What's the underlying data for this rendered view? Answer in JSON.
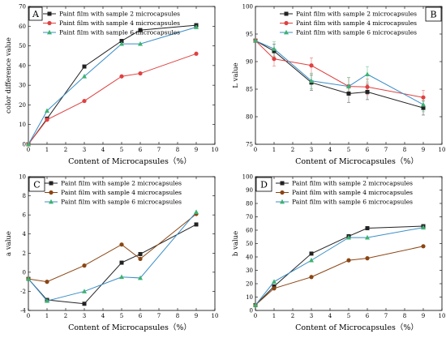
{
  "chart_data": [
    {
      "type": "line",
      "panel": "A",
      "xlabel": "Content of Microcapsules（%）",
      "ylabel": "color difference value",
      "xlim": [
        0,
        10
      ],
      "ylim": [
        0,
        70
      ],
      "xticks": [
        0,
        1,
        2,
        3,
        4,
        5,
        6,
        7,
        8,
        9,
        10
      ],
      "yticks": [
        0,
        10,
        20,
        30,
        40,
        50,
        60,
        70
      ],
      "x": [
        0,
        1,
        3,
        5,
        6,
        9
      ],
      "legend_position": "top-left",
      "series": [
        {
          "name": "Paint film with sample 2 microcapsules",
          "color": "#222222",
          "marker": "square",
          "values": [
            0,
            13,
            39.5,
            52.5,
            58,
            60.5
          ]
        },
        {
          "name": "Paint film with sample 4 microcapsules",
          "color": "#e04040",
          "marker": "circle",
          "values": [
            0,
            12.5,
            22,
            34.5,
            36,
            46
          ]
        },
        {
          "name": "Paint film with sample 6 microcapsules",
          "color": "#3cb371",
          "marker": "triangle",
          "line_color": "#3a8ec8",
          "values": [
            0,
            17,
            34.5,
            51,
            51,
            59.5
          ]
        }
      ]
    },
    {
      "type": "line",
      "panel": "B",
      "xlabel": "Content of  Microcapsules（%）",
      "ylabel": "L value",
      "xlim": [
        0,
        10
      ],
      "ylim": [
        75,
        100
      ],
      "xticks": [
        0,
        1,
        2,
        3,
        4,
        5,
        6,
        7,
        8,
        9,
        10
      ],
      "yticks": [
        75,
        80,
        85,
        90,
        95,
        100
      ],
      "x": [
        0,
        1,
        3,
        5,
        6,
        9
      ],
      "legend_position": "top-right",
      "series": [
        {
          "name": "Paint film with sample 2 microcapsules",
          "color": "#222222",
          "marker": "square",
          "values": [
            93.8,
            91.9,
            86.2,
            84.2,
            84.5,
            81.6
          ]
        },
        {
          "name": "Paint film with sample 4 microcapsules",
          "color": "#e04040",
          "marker": "circle",
          "values": [
            93.8,
            90.5,
            89.3,
            85.5,
            85.4,
            83.5
          ]
        },
        {
          "name": "Paint film with sample 6 microcapsules",
          "color": "#3cb371",
          "marker": "triangle",
          "line_color": "#3a8ec8",
          "values": [
            93.8,
            92.3,
            86.5,
            85.5,
            87.7,
            82.2
          ]
        }
      ],
      "error": [
        0,
        1.3,
        1.4,
        1.6,
        1.4,
        1.3
      ]
    },
    {
      "type": "line",
      "panel": "C",
      "xlabel": "Content of  Microcapsules（%）",
      "ylabel": "a value",
      "xlim": [
        0,
        10
      ],
      "ylim": [
        -4,
        10
      ],
      "xticks": [
        0,
        1,
        2,
        3,
        4,
        5,
        6,
        7,
        8,
        9,
        10
      ],
      "yticks": [
        -4,
        -2,
        0,
        2,
        4,
        6,
        8,
        10
      ],
      "x": [
        0,
        1,
        3,
        5,
        6,
        9
      ],
      "legend_position": "top-right",
      "series": [
        {
          "name": "Paint film with sample 2 microcapsules",
          "color": "#222222",
          "marker": "square",
          "values": [
            -0.7,
            -2.9,
            -3.3,
            1.0,
            1.9,
            5.0
          ]
        },
        {
          "name": "Paint film with sample 4 microcapsules",
          "color": "#8b4513",
          "marker": "circle",
          "values": [
            -0.7,
            -1.0,
            0.7,
            2.9,
            1.4,
            6.1
          ]
        },
        {
          "name": "Paint film with sample 6 microcapsules",
          "color": "#3cb371",
          "marker": "triangle",
          "line_color": "#3a8ec8",
          "values": [
            -0.7,
            -3.0,
            -2.0,
            -0.5,
            -0.6,
            6.3
          ]
        }
      ]
    },
    {
      "type": "line",
      "panel": "D",
      "xlabel": "Content of  Microcapsules（%）",
      "ylabel": "b value",
      "xlim": [
        0,
        10
      ],
      "ylim": [
        0,
        100
      ],
      "xticks": [
        0,
        1,
        2,
        3,
        4,
        5,
        6,
        7,
        8,
        9,
        10
      ],
      "yticks": [
        0,
        10,
        20,
        30,
        40,
        50,
        60,
        70,
        80,
        90,
        100
      ],
      "x": [
        0,
        1,
        3,
        5,
        6,
        9
      ],
      "legend_position": "top-left",
      "series": [
        {
          "name": "Paint film with sample 2 microcapsules",
          "color": "#222222",
          "marker": "square",
          "values": [
            4,
            18,
            42.5,
            55.5,
            61.5,
            63
          ]
        },
        {
          "name": "Paint film with sample 4 microcapsules",
          "color": "#8b4513",
          "marker": "circle",
          "values": [
            4,
            16.5,
            25,
            37.5,
            39,
            48
          ]
        },
        {
          "name": "Paint film with sample 6 microcapsules",
          "color": "#3cb371",
          "marker": "triangle",
          "line_color": "#3a8ec8",
          "values": [
            4,
            21.5,
            37.5,
            54.5,
            54.5,
            62
          ]
        }
      ]
    }
  ]
}
